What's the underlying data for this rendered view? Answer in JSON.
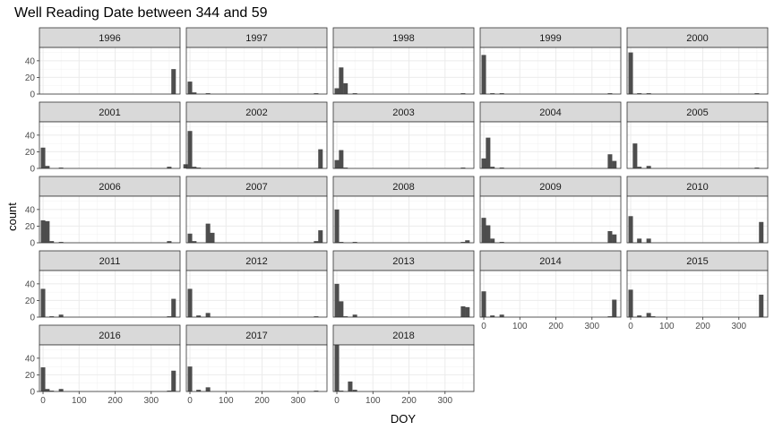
{
  "chart_data": {
    "type": "bar",
    "title": "Well Reading Date between 344 and 59",
    "xlabel": "DOY",
    "ylabel": "count",
    "xlim": [
      -10,
      380
    ],
    "ylim": [
      0,
      56
    ],
    "x_ticks": [
      0,
      100,
      200,
      300
    ],
    "y_ticks": [
      0,
      20,
      40
    ],
    "bin_width": 12.5,
    "bar_color": "#4d4d4d",
    "strip_color": "#d9d9d9",
    "grid": true,
    "facets": [
      {
        "label": "1996",
        "bins": [
          [
            362,
            30
          ]
        ]
      },
      {
        "label": "1997",
        "bins": [
          [
            0,
            15
          ],
          [
            12,
            2
          ],
          [
            50,
            1
          ],
          [
            350,
            1
          ]
        ]
      },
      {
        "label": "1998",
        "bins": [
          [
            0,
            7
          ],
          [
            12,
            32
          ],
          [
            24,
            13
          ],
          [
            50,
            1
          ],
          [
            350,
            1
          ]
        ]
      },
      {
        "label": "1999",
        "bins": [
          [
            0,
            47
          ],
          [
            24,
            1
          ],
          [
            50,
            1
          ],
          [
            350,
            1
          ]
        ]
      },
      {
        "label": "2000",
        "bins": [
          [
            0,
            50
          ],
          [
            24,
            1
          ],
          [
            50,
            1
          ],
          [
            350,
            1
          ]
        ]
      },
      {
        "label": "2001",
        "bins": [
          [
            0,
            25
          ],
          [
            12,
            3
          ],
          [
            50,
            1
          ],
          [
            350,
            2
          ]
        ]
      },
      {
        "label": "2002",
        "bins": [
          [
            -12,
            5
          ],
          [
            0,
            45
          ],
          [
            12,
            2
          ],
          [
            24,
            1
          ],
          [
            362,
            23
          ]
        ]
      },
      {
        "label": "2003",
        "bins": [
          [
            0,
            10
          ],
          [
            12,
            22
          ],
          [
            24,
            1
          ],
          [
            350,
            1
          ]
        ]
      },
      {
        "label": "2004",
        "bins": [
          [
            0,
            12
          ],
          [
            12,
            37
          ],
          [
            24,
            2
          ],
          [
            50,
            1
          ],
          [
            350,
            17
          ],
          [
            362,
            9
          ]
        ]
      },
      {
        "label": "2005",
        "bins": [
          [
            12,
            30
          ],
          [
            24,
            2
          ],
          [
            50,
            3
          ],
          [
            350,
            1
          ]
        ]
      },
      {
        "label": "2006",
        "bins": [
          [
            0,
            27
          ],
          [
            12,
            26
          ],
          [
            24,
            2
          ],
          [
            50,
            1
          ],
          [
            350,
            2
          ]
        ]
      },
      {
        "label": "2007",
        "bins": [
          [
            0,
            11
          ],
          [
            12,
            2
          ],
          [
            50,
            23
          ],
          [
            62,
            12
          ],
          [
            350,
            2
          ],
          [
            362,
            15
          ]
        ]
      },
      {
        "label": "2008",
        "bins": [
          [
            0,
            40
          ],
          [
            12,
            1
          ],
          [
            50,
            1
          ],
          [
            350,
            1
          ],
          [
            362,
            3
          ]
        ]
      },
      {
        "label": "2009",
        "bins": [
          [
            0,
            30
          ],
          [
            12,
            21
          ],
          [
            24,
            5
          ],
          [
            50,
            1
          ],
          [
            350,
            14
          ],
          [
            362,
            10
          ]
        ]
      },
      {
        "label": "2010",
        "bins": [
          [
            0,
            32
          ],
          [
            24,
            5
          ],
          [
            50,
            5
          ],
          [
            362,
            25
          ]
        ]
      },
      {
        "label": "2011",
        "bins": [
          [
            0,
            34
          ],
          [
            24,
            1
          ],
          [
            50,
            3
          ],
          [
            350,
            1
          ],
          [
            362,
            22
          ]
        ]
      },
      {
        "label": "2012",
        "bins": [
          [
            0,
            34
          ],
          [
            24,
            2
          ],
          [
            50,
            5
          ],
          [
            350,
            1
          ]
        ]
      },
      {
        "label": "2013",
        "bins": [
          [
            0,
            40
          ],
          [
            12,
            19
          ],
          [
            24,
            1
          ],
          [
            50,
            3
          ],
          [
            350,
            13
          ],
          [
            362,
            12
          ]
        ]
      },
      {
        "label": "2014",
        "bins": [
          [
            0,
            31
          ],
          [
            24,
            2
          ],
          [
            50,
            3
          ],
          [
            350,
            1
          ],
          [
            362,
            21
          ]
        ]
      },
      {
        "label": "2015",
        "bins": [
          [
            0,
            33
          ],
          [
            24,
            2
          ],
          [
            50,
            5
          ],
          [
            62,
            1
          ],
          [
            362,
            27
          ]
        ]
      },
      {
        "label": "2016",
        "bins": [
          [
            0,
            29
          ],
          [
            12,
            3
          ],
          [
            24,
            1
          ],
          [
            50,
            3
          ],
          [
            350,
            1
          ],
          [
            362,
            25
          ]
        ]
      },
      {
        "label": "2017",
        "bins": [
          [
            0,
            30
          ],
          [
            24,
            2
          ],
          [
            50,
            5
          ],
          [
            350,
            1
          ]
        ]
      },
      {
        "label": "2018",
        "bins": [
          [
            0,
            56
          ],
          [
            12,
            1
          ],
          [
            37,
            12
          ],
          [
            50,
            2
          ]
        ]
      }
    ]
  }
}
